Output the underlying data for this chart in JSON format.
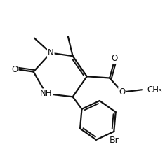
{
  "background_color": "#ffffff",
  "line_color": "#111111",
  "line_width": 1.6,
  "font_size": 8.5,
  "xlim": [
    0,
    10
  ],
  "ylim": [
    0.5,
    9.5
  ]
}
